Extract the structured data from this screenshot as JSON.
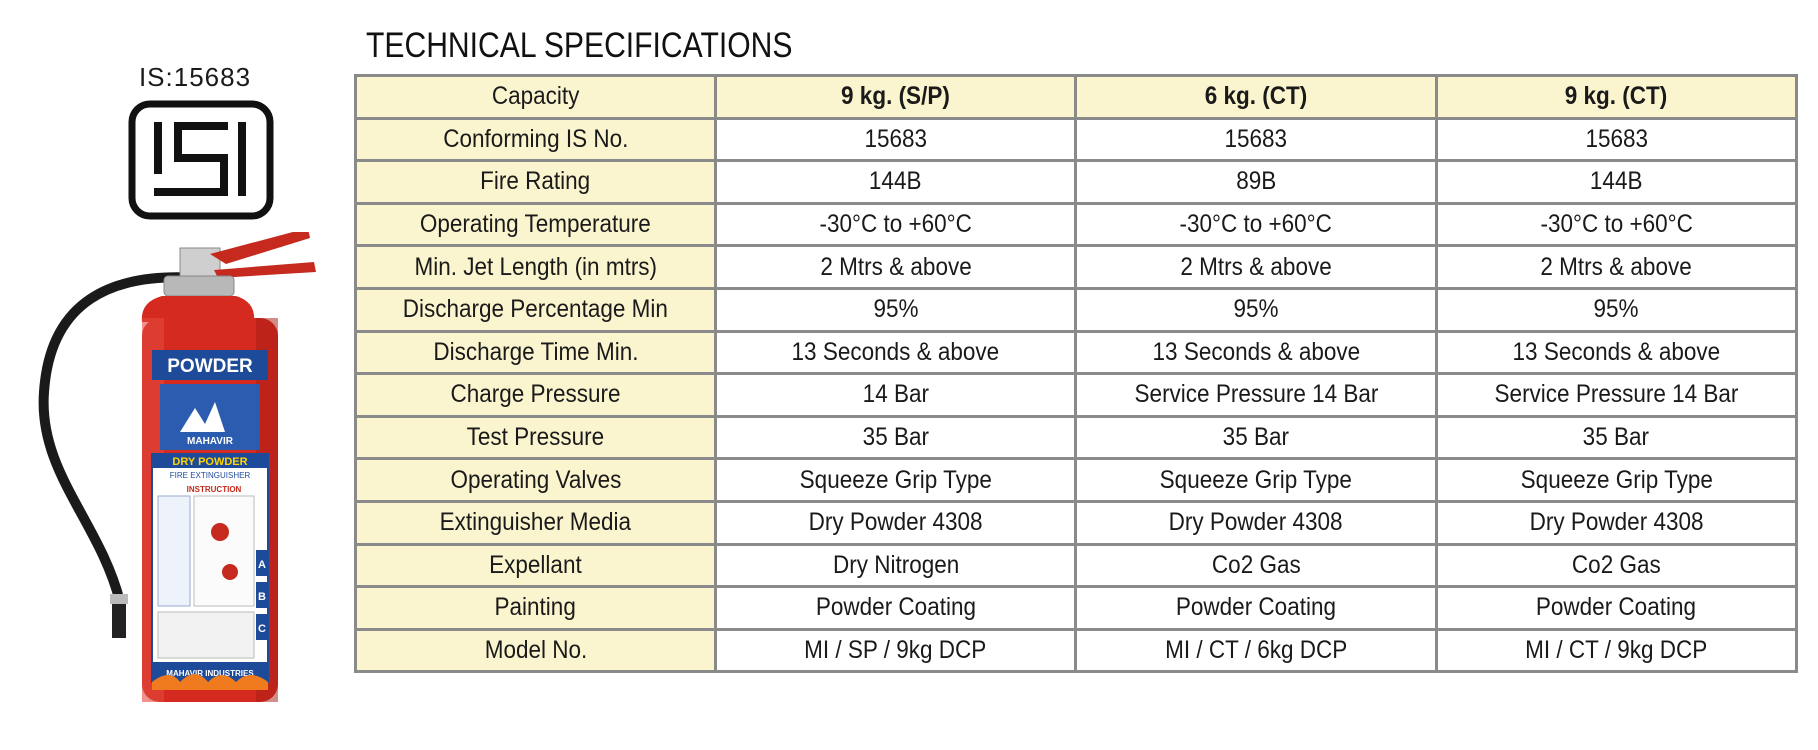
{
  "title": "TECHNICAL SPECIFICATIONS",
  "certification": {
    "caption": "IS:15683",
    "logo_icon": "isi-mark-icon"
  },
  "product_image": {
    "icon": "fire-extinguisher-icon",
    "band_label": "POWDER",
    "brand": "MAHAVIR",
    "product_label": "DRY POWDER",
    "sub_label": "FIRE EXTINGUISHER",
    "instruction_label": "INSTRUCTION",
    "maker": "MAHAVIR INDUSTRIES",
    "class_letters": [
      "A",
      "B",
      "C"
    ],
    "body_color": "#d42a1f",
    "label_color": "#1e4a9a"
  },
  "table": {
    "header": {
      "label": "Capacity",
      "columns": [
        "9 kg. (S/P)",
        "6 kg. (CT)",
        "9 kg. (CT)"
      ]
    },
    "rows": [
      {
        "label": "Conforming IS No.",
        "values": [
          "15683",
          "15683",
          "15683"
        ]
      },
      {
        "label": "Fire Rating",
        "values": [
          "144B",
          "89B",
          "144B"
        ]
      },
      {
        "label": "Operating Temperature",
        "values": [
          "-30°C to +60°C",
          "-30°C to +60°C",
          "-30°C to +60°C"
        ]
      },
      {
        "label": "Min. Jet Length (in mtrs)",
        "values": [
          "2 Mtrs & above",
          "2 Mtrs & above",
          "2 Mtrs & above"
        ]
      },
      {
        "label": "Discharge Percentage Min",
        "values": [
          "95%",
          "95%",
          "95%"
        ]
      },
      {
        "label": "Discharge Time Min.",
        "values": [
          "13 Seconds & above",
          "13 Seconds & above",
          "13 Seconds & above"
        ]
      },
      {
        "label": "Charge Pressure",
        "values": [
          "14 Bar",
          "Service Pressure 14 Bar",
          "Service Pressure 14 Bar"
        ]
      },
      {
        "label": "Test Pressure",
        "values": [
          "35 Bar",
          "35 Bar",
          "35 Bar"
        ]
      },
      {
        "label": "Operating Valves",
        "values": [
          "Squeeze Grip Type",
          "Squeeze Grip Type",
          "Squeeze Grip Type"
        ]
      },
      {
        "label": "Extinguisher Media",
        "values": [
          "Dry Powder 4308",
          "Dry Powder 4308",
          "Dry Powder 4308"
        ]
      },
      {
        "label": "Expellant",
        "values": [
          "Dry Nitrogen",
          "Co2 Gas",
          "Co2 Gas"
        ]
      },
      {
        "label": "Painting",
        "values": [
          "Powder Coating",
          "Powder Coating",
          "Powder Coating"
        ]
      },
      {
        "label": "Model No.",
        "values": [
          "MI / SP / 9kg DCP",
          "MI / CT / 6kg DCP",
          "MI / CT / 9kg DCP"
        ]
      }
    ]
  },
  "colors": {
    "label_column": "#fbf5cf",
    "border": "#8a8a8a"
  }
}
